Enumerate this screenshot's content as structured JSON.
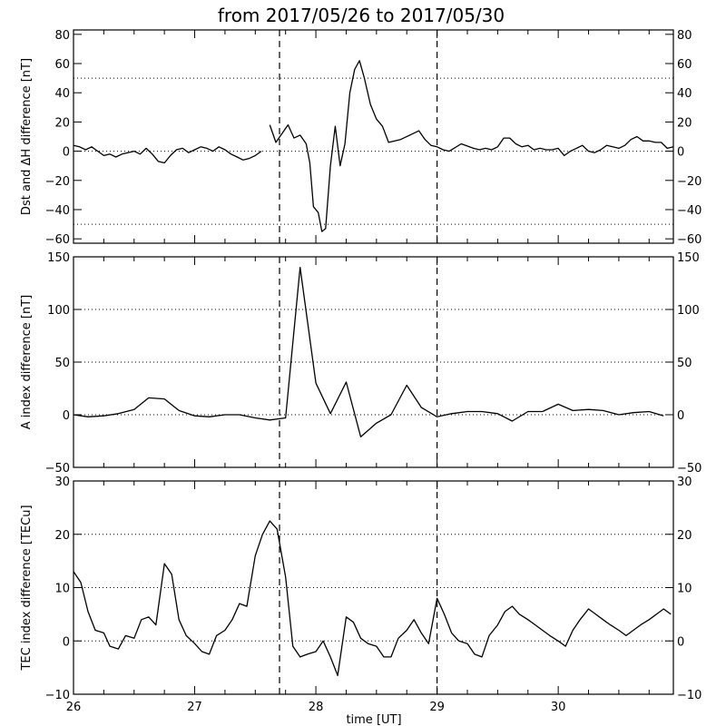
{
  "title": "from 2017/05/26 to 2017/05/30",
  "xlabel": "time [UT]",
  "x_ticks": [
    "26",
    "27",
    "28",
    "29",
    "30"
  ],
  "event_lines": [
    27.7,
    29.0
  ],
  "chart_data": [
    {
      "type": "line",
      "ylabel": "Dst and ΔH difference [nT]",
      "xlim": [
        26.0,
        30.95
      ],
      "ylim": [
        -63,
        83
      ],
      "yticks": [
        -60,
        -40,
        -20,
        0,
        20,
        40,
        60,
        80
      ],
      "ref_lines": [
        -50,
        0,
        50
      ],
      "segments": [
        {
          "x": [
            26.0,
            26.05,
            26.1,
            26.15,
            26.2,
            26.25,
            26.3,
            26.35,
            26.4,
            26.45,
            26.5,
            26.55,
            26.6,
            26.65,
            26.7,
            26.75,
            26.8,
            26.85,
            26.9,
            26.95,
            27.0,
            27.05,
            27.1,
            27.15,
            27.2,
            27.25,
            27.3,
            27.35,
            27.4,
            27.45,
            27.5,
            27.55
          ],
          "y": [
            4,
            3,
            1,
            3,
            0,
            -3,
            -2,
            -4,
            -2,
            -1,
            0,
            -2,
            2,
            -2,
            -7,
            -8,
            -3,
            1,
            2,
            -1,
            1,
            3,
            2,
            0,
            3,
            1,
            -2,
            -4,
            -6,
            -5,
            -3,
            0
          ]
        },
        {
          "x": [
            27.62,
            27.67,
            27.72,
            27.77,
            27.82,
            27.87,
            27.92,
            27.95,
            27.98,
            28.02,
            28.05,
            28.08,
            28.12,
            28.16,
            28.2,
            28.24,
            28.28,
            28.32,
            28.36,
            28.4,
            28.45,
            28.5,
            28.55,
            28.6,
            28.7,
            28.8,
            28.85,
            28.9,
            28.95,
            29.0,
            29.05,
            29.1,
            29.2,
            29.3,
            29.35,
            29.4,
            29.45,
            29.5,
            29.55,
            29.6,
            29.65,
            29.7,
            29.75,
            29.8,
            29.85,
            29.9,
            29.95,
            30.0,
            30.05,
            30.1,
            30.15,
            30.2,
            30.25,
            30.3,
            30.35,
            30.4,
            30.45,
            30.5,
            30.55,
            30.6,
            30.65,
            30.7,
            30.75,
            30.8,
            30.85,
            30.9,
            30.95
          ],
          "y": [
            18,
            6,
            12,
            18,
            9,
            11,
            5,
            -8,
            -38,
            -42,
            -55,
            -53,
            -10,
            17,
            -10,
            5,
            40,
            56,
            62,
            50,
            32,
            22,
            17,
            6,
            8,
            12,
            14,
            8,
            4,
            3,
            1,
            0,
            5,
            2,
            1,
            2,
            1,
            3,
            9,
            9,
            5,
            3,
            4,
            1,
            2,
            1,
            1,
            2,
            -3,
            0,
            2,
            4,
            0,
            -1,
            1,
            4,
            3,
            2,
            4,
            8,
            10,
            7,
            7,
            6,
            6,
            2,
            3
          ]
        }
      ]
    },
    {
      "type": "line",
      "ylabel": "A index difference [nT]",
      "xlim": [
        26.0,
        30.95
      ],
      "ylim": [
        -50,
        150
      ],
      "yticks": [
        -50,
        0,
        50,
        100,
        150
      ],
      "ref_lines": [
        -50,
        0,
        50,
        100
      ],
      "segments": [
        {
          "x": [
            26.0,
            26.12,
            26.25,
            26.37,
            26.5,
            26.62,
            26.75,
            26.87,
            27.0,
            27.12,
            27.25,
            27.37,
            27.5,
            27.62,
            27.75,
            27.87,
            28.0,
            28.12,
            28.25,
            28.37,
            28.5,
            28.62,
            28.75,
            28.87,
            29.0,
            29.12,
            29.25,
            29.37,
            29.5,
            29.62,
            29.75,
            29.87,
            30.0,
            30.12,
            30.25,
            30.37,
            30.5,
            30.62,
            30.75,
            30.87
          ],
          "y": [
            0,
            -2,
            -1,
            1,
            5,
            16,
            15,
            4,
            -1,
            -2,
            0,
            0,
            -3,
            -5,
            -3,
            140,
            30,
            1,
            31,
            -21,
            -8,
            0,
            28,
            7,
            -2,
            1,
            3,
            3,
            1,
            -6,
            3,
            3,
            10,
            4,
            5,
            4,
            0,
            2,
            3,
            -1
          ]
        }
      ]
    },
    {
      "type": "line",
      "ylabel": "TEC index difference [TECu]",
      "xlim": [
        26.0,
        30.95
      ],
      "ylim": [
        -10,
        30
      ],
      "yticks": [
        -10,
        0,
        10,
        20,
        30
      ],
      "ref_lines": [
        -10,
        0,
        10,
        20
      ],
      "segments": [
        {
          "x": [
            26.0,
            26.06,
            26.12,
            26.18,
            26.25,
            26.3,
            26.37,
            26.43,
            26.5,
            26.56,
            26.62,
            26.68,
            26.75,
            26.81,
            26.87,
            26.93,
            27.0,
            27.06,
            27.12,
            27.18,
            27.25,
            27.31,
            27.37,
            27.43,
            27.5,
            27.56,
            27.62,
            27.68,
            27.75,
            27.81,
            27.87,
            27.93,
            28.0,
            28.06,
            28.12,
            28.18,
            28.25,
            28.31,
            28.37,
            28.43,
            28.5,
            28.56,
            28.62,
            28.68,
            28.75,
            28.81,
            28.87,
            28.93,
            29.0,
            29.06,
            29.12,
            29.18,
            29.25,
            29.31,
            29.37,
            29.43,
            29.5,
            29.56,
            29.62,
            29.68,
            29.75,
            29.81,
            29.87,
            29.93,
            30.0,
            30.06,
            30.12,
            30.18,
            30.25,
            30.31,
            30.37,
            30.43,
            30.5,
            30.56,
            30.62,
            30.68,
            30.75,
            30.81,
            30.87,
            30.93
          ],
          "y": [
            13,
            11,
            5.5,
            2,
            1.5,
            -1,
            -1.5,
            1,
            0.5,
            4,
            4.5,
            3,
            14.5,
            12.5,
            4,
            1,
            -0.5,
            -2,
            -2.5,
            1,
            2,
            4,
            7,
            6.5,
            16,
            20,
            22.5,
            21,
            12,
            -1,
            -3,
            -2.5,
            -2,
            0,
            -3,
            -6.5,
            4.5,
            3.5,
            0.5,
            -0.5,
            -1,
            -3,
            -3,
            0.5,
            2,
            4,
            1.5,
            -0.5,
            8,
            5,
            1.5,
            0,
            -0.5,
            -2.5,
            -3,
            1,
            3,
            5.5,
            6.5,
            5,
            4,
            3,
            2,
            1,
            0,
            -1,
            2,
            4,
            6,
            5,
            4,
            3,
            2,
            1,
            2,
            3,
            4,
            5,
            6,
            5
          ]
        }
      ]
    }
  ]
}
